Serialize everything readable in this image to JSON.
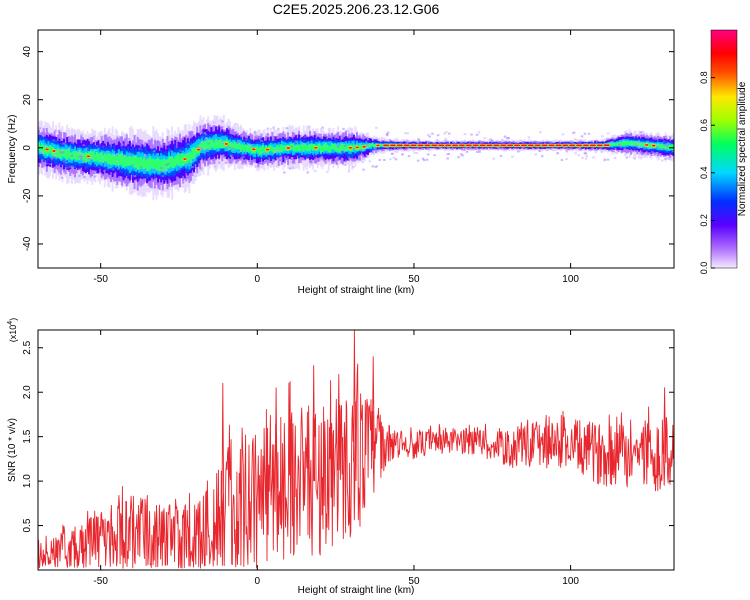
{
  "page": {
    "title": "C2E5.2025.206.23.12.G06"
  },
  "colors": {
    "snr_line": "#e8262d",
    "spectrum_ridge": "#e02020",
    "axis": "#000000"
  },
  "chart_data": [
    {
      "type": "heatmap",
      "title": "C2E5.2025.206.23.12.G06",
      "xlabel": "Height of straight line (km)",
      "ylabel": "Frequency (Hz)",
      "xlim": [
        -70,
        133
      ],
      "ylim": [
        -50,
        49
      ],
      "xticks": [
        -50,
        0,
        50,
        100
      ],
      "yticks": [
        -40,
        -20,
        0,
        20,
        40
      ],
      "colorbar": {
        "label": "Normalized spectral amplitude",
        "range": [
          0,
          1
        ],
        "ticks": [
          "0.0",
          "0.2",
          "0.4",
          "0.6",
          "0.8"
        ],
        "colormap": "rainbow (violet-blue-cyan-green-yellow-red-magenta)"
      },
      "ridge": {
        "description": "frequency of peak spectral amplitude vs height",
        "x": [
          -70,
          -60,
          -50,
          -40,
          -30,
          -22,
          -18,
          -12,
          -5,
          0,
          10,
          20,
          30,
          38,
          50,
          60,
          70,
          80,
          90,
          100,
          110,
          118,
          125,
          133
        ],
        "y": [
          0,
          -3,
          -4,
          -6,
          -7,
          -4,
          1,
          2,
          0,
          -1,
          0,
          0,
          0,
          1,
          1,
          1,
          1,
          1,
          1,
          1,
          1,
          2,
          1,
          0
        ],
        "halfwidth": [
          4,
          4,
          4,
          5,
          5,
          5,
          4,
          4,
          3,
          3,
          3,
          3,
          3,
          1.2,
          0.8,
          0.8,
          0.8,
          0.8,
          0.8,
          0.8,
          1,
          2,
          2,
          2
        ]
      }
    },
    {
      "type": "line",
      "xlabel": "Height of straight line (km)",
      "ylabel": "SNR (10 * v/v)",
      "y_multiplier": "(x10^4)",
      "xlim": [
        -70,
        133
      ],
      "ylim": [
        0,
        2.7
      ],
      "xticks": [
        -50,
        0,
        50,
        100
      ],
      "yticks": [
        0.5,
        1.0,
        1.5,
        2.0,
        2.5
      ],
      "ytick_labels": [
        "0.5",
        "1.0",
        "1.5",
        "2.0",
        "2.5"
      ],
      "series": [
        {
          "color": "#e8262d",
          "envelope": {
            "x": [
              -70,
              -60,
              -50,
              -40,
              -30,
              -20,
              -12,
              -5,
              0,
              5,
              10,
              15,
              20,
              25,
              30,
              35,
              40,
              45,
              50,
              60,
              70,
              80,
              90,
              100,
              110,
              120,
              125,
              133
            ],
            "mean": [
              0.15,
              0.2,
              0.3,
              0.4,
              0.3,
              0.3,
              0.6,
              0.7,
              0.8,
              0.9,
              1.0,
              1.0,
              1.0,
              1.1,
              1.2,
              1.3,
              1.4,
              1.4,
              1.4,
              1.45,
              1.45,
              1.35,
              1.4,
              1.4,
              1.3,
              1.3,
              1.3,
              1.3
            ],
            "spread": [
              0.15,
              0.25,
              0.35,
              0.45,
              0.45,
              0.45,
              0.75,
              0.8,
              0.8,
              0.85,
              0.85,
              0.85,
              0.85,
              0.85,
              0.85,
              0.75,
              0.3,
              0.15,
              0.15,
              0.15,
              0.15,
              0.2,
              0.25,
              0.3,
              0.35,
              0.4,
              0.4,
              0.45
            ]
          },
          "peaks": [
            {
              "x": -11,
              "y": 2.1
            },
            {
              "x": 6,
              "y": 2.05
            },
            {
              "x": 18,
              "y": 2.3
            },
            {
              "x": 26,
              "y": 2.2
            },
            {
              "x": 31,
              "y": 2.7
            },
            {
              "x": 37,
              "y": 2.4
            },
            {
              "x": 88,
              "y": 1.65
            },
            {
              "x": 130,
              "y": 2.05
            }
          ]
        }
      ]
    }
  ]
}
